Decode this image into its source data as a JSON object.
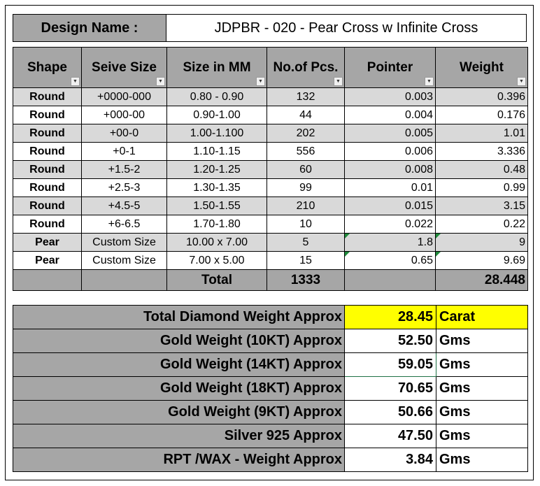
{
  "design": {
    "label": "Design Name :",
    "value": "JDPBR - 020 - Pear Cross w Infinite Cross"
  },
  "table": {
    "headers": [
      "Shape",
      "Seive Size",
      "Size in MM",
      "No.of Pcs.",
      "Pointer",
      "Weight"
    ],
    "rows": [
      {
        "shape": "Round",
        "seive": "+0000-000",
        "size": "0.80 - 0.90",
        "pcs": "132",
        "pointer": "0.003",
        "weight": "0.396"
      },
      {
        "shape": "Round",
        "seive": "+000-00",
        "size": "0.90-1.00",
        "pcs": "44",
        "pointer": "0.004",
        "weight": "0.176"
      },
      {
        "shape": "Round",
        "seive": "+00-0",
        "size": "1.00-1.100",
        "pcs": "202",
        "pointer": "0.005",
        "weight": "1.01"
      },
      {
        "shape": "Round",
        "seive": "+0-1",
        "size": "1.10-1.15",
        "pcs": "556",
        "pointer": "0.006",
        "weight": "3.336"
      },
      {
        "shape": "Round",
        "seive": "+1.5-2",
        "size": "1.20-1.25",
        "pcs": "60",
        "pointer": "0.008",
        "weight": "0.48"
      },
      {
        "shape": "Round",
        "seive": "+2.5-3",
        "size": "1.30-1.35",
        "pcs": "99",
        "pointer": "0.01",
        "weight": "0.99"
      },
      {
        "shape": "Round",
        "seive": "+4.5-5",
        "size": "1.50-1.55",
        "pcs": "210",
        "pointer": "0.015",
        "weight": "3.15"
      },
      {
        "shape": "Round",
        "seive": "+6-6.5",
        "size": "1.70-1.80",
        "pcs": "10",
        "pointer": "0.022",
        "weight": "0.22"
      },
      {
        "shape": "Pear",
        "seive": "Custom Size",
        "size": "10.00 x 7.00",
        "pcs": "5",
        "pointer": "1.8",
        "weight": "9"
      },
      {
        "shape": "Pear",
        "seive": "Custom Size",
        "size": "7.00 x 5.00",
        "pcs": "15",
        "pointer": "0.65",
        "weight": "9.69"
      }
    ],
    "total": {
      "label": "Total",
      "pcs": "1333",
      "weight": "28.448"
    }
  },
  "summary": [
    {
      "label": "Total Diamond Weight Approx",
      "value": "28.45",
      "unit": "Carat"
    },
    {
      "label": "Gold Weight (10KT) Approx",
      "value": "52.50",
      "unit": "Gms"
    },
    {
      "label": "Gold Weight (14KT) Approx",
      "value": "59.05",
      "unit": "Gms"
    },
    {
      "label": "Gold Weight (18KT) Approx",
      "value": "70.65",
      "unit": "Gms"
    },
    {
      "label": "Gold Weight (9KT) Approx",
      "value": "50.66",
      "unit": "Gms"
    },
    {
      "label": "Silver 925 Approx",
      "value": "47.50",
      "unit": "Gms"
    },
    {
      "label": "RPT /WAX - Weight Approx",
      "value": "3.84",
      "unit": "Gms"
    }
  ],
  "colors": {
    "header_gray": "#a6a6a6",
    "band_gray": "#d9d9d9",
    "highlight": "#ffff00"
  },
  "icons": {
    "filter": "filter-dropdown-icon",
    "filter_active": "filter-active-icon"
  }
}
